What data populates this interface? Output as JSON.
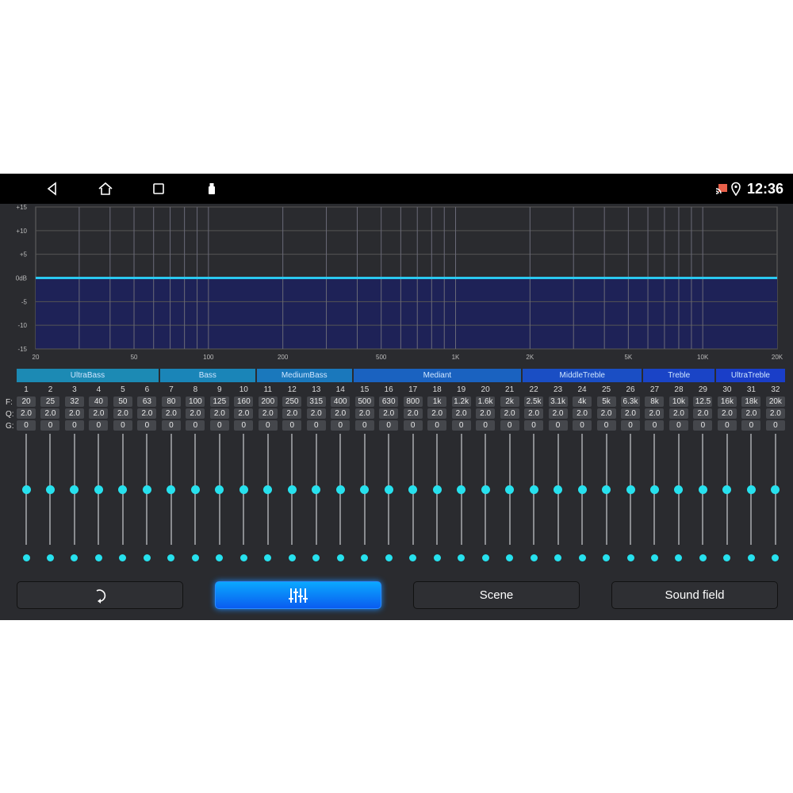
{
  "status_bar": {
    "time": "12:36",
    "nav_icons": [
      "back-icon",
      "home-icon",
      "recents-icon",
      "usb-icon"
    ],
    "status_icons": [
      "cast-icon",
      "location-icon"
    ],
    "cast_color": "#e8604a"
  },
  "chart": {
    "y_ticks": [
      "+15",
      "+10",
      "+5",
      "0dB",
      "-5",
      "-10",
      "-15"
    ],
    "x_ticks": [
      "20",
      "50",
      "100",
      "200",
      "500",
      "1K",
      "2K",
      "5K",
      "10K",
      "20K"
    ],
    "x_range_hz": [
      20,
      20000
    ],
    "y_range_db": [
      -15,
      15
    ],
    "x_scale": "log",
    "curve_db": 0,
    "curve_color": "#2ac8f0",
    "fill_color": "#1e2257"
  },
  "categories": [
    {
      "label": "UltraBass",
      "bands": [
        1,
        6
      ]
    },
    {
      "label": "Bass",
      "bands": [
        7,
        10
      ]
    },
    {
      "label": "MediumBass",
      "bands": [
        11,
        14
      ]
    },
    {
      "label": "Mediant",
      "bands": [
        15,
        21
      ]
    },
    {
      "label": "MiddleTreble",
      "bands": [
        22,
        26
      ]
    },
    {
      "label": "Treble",
      "bands": [
        27,
        29
      ]
    },
    {
      "label": "UltraTreble",
      "bands": [
        30,
        32
      ]
    }
  ],
  "row_labels": {
    "f": "F:",
    "q": "Q:",
    "g": "G:"
  },
  "bands": {
    "f": [
      "20",
      "25",
      "32",
      "40",
      "50",
      "63",
      "80",
      "100",
      "125",
      "160",
      "200",
      "250",
      "315",
      "400",
      "500",
      "630",
      "800",
      "1k",
      "1.2k",
      "1.6k",
      "2k",
      "2.5k",
      "3.1k",
      "4k",
      "5k",
      "6.3k",
      "8k",
      "10k",
      "12.5",
      "16k",
      "18k",
      "20k"
    ],
    "q": "2.0",
    "g": "0",
    "gain_db": 0,
    "accent": "#27e1ee"
  },
  "buttons": [
    {
      "label": "",
      "icon": "reset-icon"
    },
    {
      "label": "",
      "icon": "equalizer-icon",
      "active": true
    },
    {
      "label": "Scene"
    },
    {
      "label": "Sound field"
    }
  ]
}
